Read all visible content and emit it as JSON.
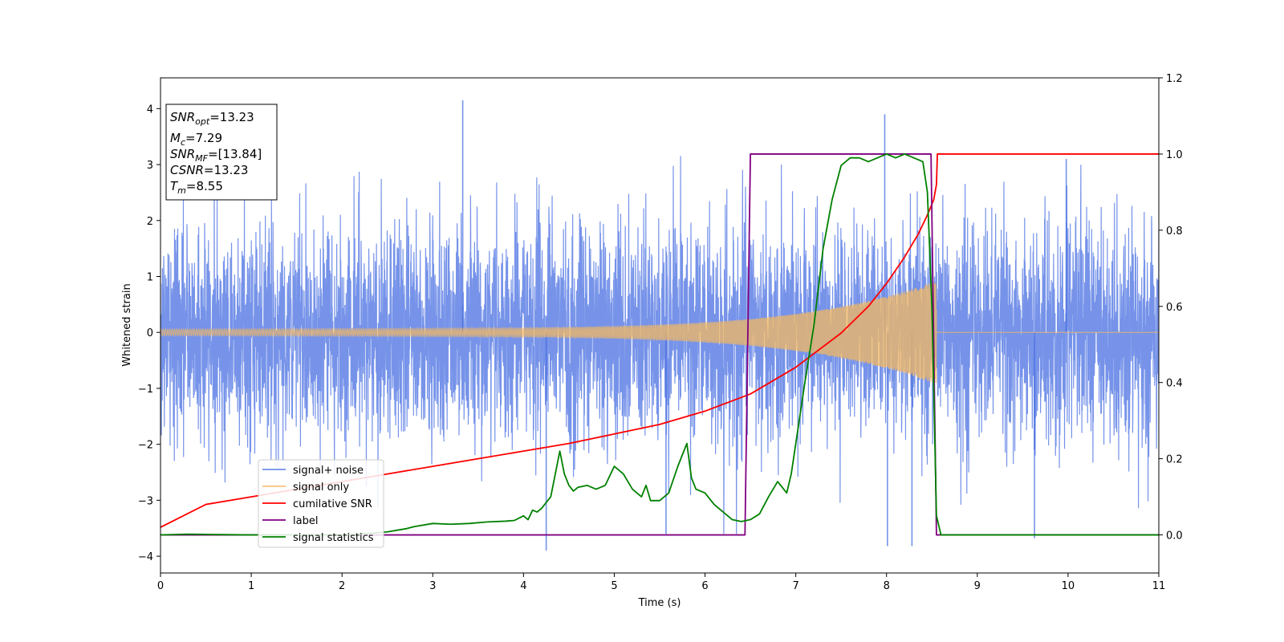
{
  "chart_data": {
    "type": "line",
    "xlabel": "Time (s)",
    "ylabel": "Whitened strain",
    "xlim": [
      0,
      11
    ],
    "ylim": [
      -4.3,
      4.55
    ],
    "y2lim": [
      -0.1,
      1.2
    ],
    "x_ticks": [
      0,
      1,
      2,
      3,
      4,
      5,
      6,
      7,
      8,
      9,
      10,
      11
    ],
    "y_ticks": [
      -4,
      -3,
      -2,
      -1,
      0,
      1,
      2,
      3,
      4
    ],
    "y_tick_labels": [
      "−4",
      "−3",
      "−2",
      "−1",
      "0",
      "1",
      "2",
      "3",
      "4"
    ],
    "y2_ticks": [
      0.0,
      0.2,
      0.4,
      0.6,
      0.8,
      1.0,
      1.2
    ],
    "y2_tick_labels": [
      "0.0",
      "0.2",
      "0.4",
      "0.6",
      "0.8",
      "1.0",
      "1.2"
    ],
    "legend_position": "lower-left",
    "stats_box": {
      "snr_opt": {
        "main": "SNR",
        "sub": "opt",
        "value": "=13.23"
      },
      "mc": {
        "main": "M",
        "sub": "c",
        "value": "=7.29"
      },
      "snr_mf": {
        "main": "SNR",
        "sub": "MF",
        "value": "=[13.84]"
      },
      "csnr": {
        "main": "CSNR",
        "value": "=13.23"
      },
      "tm": {
        "main": "T",
        "sub": "m",
        "value": "=8.55"
      }
    },
    "series": [
      {
        "name": "signal+ noise",
        "color": "#4169e1",
        "axis": "left",
        "description_key": "noise",
        "noise_sigma": 0.95,
        "x_range": [
          0,
          11
        ],
        "peaks": [
          [
            3.33,
            4.15
          ],
          [
            4.25,
            -3.9
          ],
          [
            7.98,
            3.9
          ],
          [
            8.01,
            -3.82
          ],
          [
            8.28,
            -3.82
          ],
          [
            9.98,
            3.1
          ],
          [
            9.63,
            -3.68
          ],
          [
            5.57,
            -3.6
          ]
        ]
      },
      {
        "name": "signal only",
        "color": "#f4b860",
        "axis": "left",
        "chirp": {
          "t_start": 0.0,
          "t_merge": 8.55,
          "amp_start": 0.08,
          "amp_end": 1.15,
          "f_start": 40,
          "f_end": 140
        },
        "after_merge_value": 0.0
      },
      {
        "name": "cumilative SNR",
        "color": "#ff0000",
        "axis": "right",
        "x": [
          0.0,
          0.5,
          1.0,
          1.5,
          2.0,
          2.5,
          3.0,
          3.5,
          4.0,
          4.5,
          5.0,
          5.5,
          6.0,
          6.5,
          7.0,
          7.5,
          7.8,
          8.0,
          8.2,
          8.35,
          8.45,
          8.52,
          8.55,
          8.56,
          11.0
        ],
        "y": [
          0.02,
          0.08,
          0.1,
          0.12,
          0.14,
          0.16,
          0.18,
          0.2,
          0.22,
          0.24,
          0.265,
          0.29,
          0.325,
          0.37,
          0.44,
          0.53,
          0.6,
          0.66,
          0.73,
          0.79,
          0.84,
          0.88,
          0.92,
          1.0,
          1.0
        ]
      },
      {
        "name": "label",
        "color": "#800080",
        "axis": "right",
        "x": [
          0.0,
          6.44,
          6.5,
          8.49,
          8.55,
          11.0
        ],
        "y": [
          0.0,
          0.0,
          1.0,
          1.0,
          0.0,
          0.0
        ]
      },
      {
        "name": "signal statistics",
        "color": "#008000",
        "axis": "right",
        "x": [
          0.0,
          0.3,
          0.6,
          1.0,
          1.5,
          2.0,
          2.3,
          2.5,
          2.7,
          2.8,
          3.0,
          3.2,
          3.4,
          3.6,
          3.8,
          3.9,
          4.0,
          4.05,
          4.1,
          4.15,
          4.2,
          4.3,
          4.4,
          4.45,
          4.5,
          4.55,
          4.6,
          4.7,
          4.8,
          4.9,
          5.0,
          5.1,
          5.2,
          5.3,
          5.35,
          5.4,
          5.5,
          5.6,
          5.7,
          5.8,
          5.85,
          5.9,
          6.0,
          6.1,
          6.2,
          6.3,
          6.4,
          6.5,
          6.6,
          6.7,
          6.8,
          6.9,
          6.95,
          7.0,
          7.1,
          7.2,
          7.3,
          7.4,
          7.5,
          7.6,
          7.7,
          7.8,
          7.9,
          8.0,
          8.1,
          8.2,
          8.3,
          8.4,
          8.45,
          8.5,
          8.55,
          8.6,
          8.7,
          9.0,
          11.0
        ],
        "y": [
          0.0,
          0.002,
          0.001,
          0.0,
          0.0,
          0.0,
          0.004,
          0.008,
          0.016,
          0.022,
          0.03,
          0.028,
          0.03,
          0.034,
          0.036,
          0.038,
          0.05,
          0.04,
          0.065,
          0.06,
          0.07,
          0.1,
          0.22,
          0.16,
          0.13,
          0.115,
          0.125,
          0.13,
          0.12,
          0.13,
          0.18,
          0.16,
          0.12,
          0.1,
          0.13,
          0.09,
          0.09,
          0.11,
          0.18,
          0.24,
          0.15,
          0.12,
          0.11,
          0.08,
          0.06,
          0.04,
          0.035,
          0.04,
          0.055,
          0.1,
          0.14,
          0.11,
          0.16,
          0.24,
          0.4,
          0.55,
          0.75,
          0.88,
          0.97,
          0.99,
          0.99,
          0.98,
          0.99,
          1.0,
          0.99,
          1.0,
          0.99,
          0.98,
          0.9,
          0.6,
          0.05,
          0.0,
          0.0,
          0.0,
          0.0
        ]
      }
    ]
  }
}
